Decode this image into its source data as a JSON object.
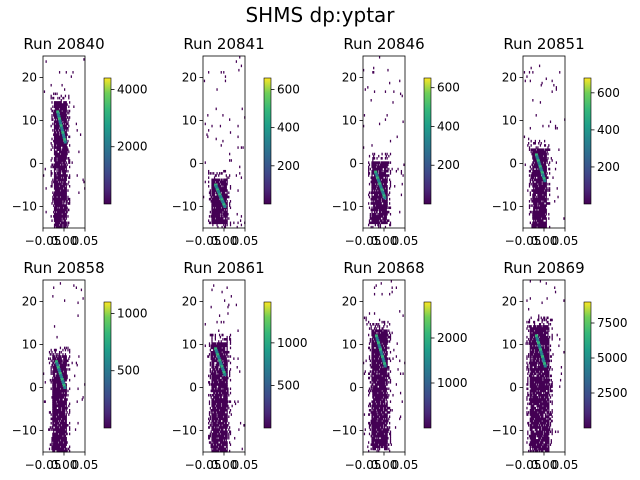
{
  "figure": {
    "suptitle": "SHMS dp:yptar"
  },
  "chart_data": [
    {
      "type": "heatmap",
      "title": "Run 20840",
      "xlim": [
        -0.05,
        0.05
      ],
      "ylim": [
        -15,
        25
      ],
      "xticks": [
        "−0.05",
        "0.00",
        "0.05"
      ],
      "yticks": [
        "−10",
        "0",
        "10",
        "20"
      ],
      "colorbar": {
        "min": 0,
        "max": 4400,
        "ticks": [
          2000,
          4000
        ]
      },
      "distribution": {
        "x_lo": -0.025,
        "x_hi": 0.005,
        "y_lo": -15,
        "y_top": 14,
        "band_x": [
          -0.015,
          0.003
        ],
        "band_y": [
          12,
          5
        ]
      }
    },
    {
      "type": "heatmap",
      "title": "Run 20841",
      "xlim": [
        -0.05,
        0.05
      ],
      "ylim": [
        -15,
        25
      ],
      "xticks": [
        "−0.05",
        "0.00",
        "0.05"
      ],
      "yticks": [
        "−10",
        "0",
        "10",
        "20"
      ],
      "colorbar": {
        "min": 0,
        "max": 660,
        "ticks": [
          200,
          400,
          600
        ]
      },
      "distribution": {
        "x_lo": -0.03,
        "x_hi": 0.008,
        "y_lo": -14,
        "y_top": -4,
        "band_x": [
          -0.02,
          0.002
        ],
        "band_y": [
          -5,
          -10
        ]
      }
    },
    {
      "type": "heatmap",
      "title": "Run 20846",
      "xlim": [
        -0.05,
        0.05
      ],
      "ylim": [
        -15,
        25
      ],
      "xticks": [
        "−0.05",
        "0.00",
        "0.05"
      ],
      "yticks": [
        "−10",
        "0",
        "10",
        "20"
      ],
      "colorbar": {
        "min": 0,
        "max": 650,
        "ticks": [
          200,
          400,
          600
        ]
      },
      "distribution": {
        "x_lo": -0.03,
        "x_hi": 0.008,
        "y_lo": -14,
        "y_top": 0,
        "band_x": [
          -0.02,
          0.002
        ],
        "band_y": [
          -2,
          -8
        ]
      }
    },
    {
      "type": "heatmap",
      "title": "Run 20851",
      "xlim": [
        -0.05,
        0.05
      ],
      "ylim": [
        -15,
        25
      ],
      "xticks": [
        "−0.05",
        "0.00",
        "0.05"
      ],
      "yticks": [
        "−10",
        "0",
        "10",
        "20"
      ],
      "colorbar": {
        "min": 0,
        "max": 680,
        "ticks": [
          200,
          400,
          600
        ]
      },
      "distribution": {
        "x_lo": -0.028,
        "x_hi": 0.006,
        "y_lo": -15,
        "y_top": 3,
        "band_x": [
          -0.018,
          0.002
        ],
        "band_y": [
          2,
          -4
        ]
      }
    },
    {
      "type": "heatmap",
      "title": "Run 20858",
      "xlim": [
        -0.05,
        0.05
      ],
      "ylim": [
        -15,
        25
      ],
      "xticks": [
        "−0.05",
        "0.00",
        "0.05"
      ],
      "yticks": [
        "−10",
        "0",
        "10",
        "20"
      ],
      "colorbar": {
        "min": 0,
        "max": 1100,
        "ticks": [
          500,
          1000
        ]
      },
      "distribution": {
        "x_lo": -0.028,
        "x_hi": 0.006,
        "y_lo": -15,
        "y_top": 7,
        "band_x": [
          -0.018,
          0.002
        ],
        "band_y": [
          6,
          0
        ]
      }
    },
    {
      "type": "heatmap",
      "title": "Run 20861",
      "xlim": [
        -0.05,
        0.05
      ],
      "ylim": [
        -15,
        25
      ],
      "xticks": [
        "−0.05",
        "0.00",
        "0.05"
      ],
      "yticks": [
        "−10",
        "0",
        "10",
        "20"
      ],
      "colorbar": {
        "min": 0,
        "max": 1480,
        "ticks": [
          500,
          1000
        ]
      },
      "distribution": {
        "x_lo": -0.03,
        "x_hi": 0.008,
        "y_lo": -15,
        "y_top": 10,
        "band_x": [
          -0.02,
          0.002
        ],
        "band_y": [
          9,
          3
        ]
      }
    },
    {
      "type": "heatmap",
      "title": "Run 20868",
      "xlim": [
        -0.05,
        0.05
      ],
      "ylim": [
        -15,
        25
      ],
      "xticks": [
        "−0.05",
        "0.00",
        "0.05"
      ],
      "yticks": [
        "−10",
        "0",
        "10",
        "20"
      ],
      "colorbar": {
        "min": 0,
        "max": 2800,
        "ticks": [
          1000,
          2000
        ]
      },
      "distribution": {
        "x_lo": -0.03,
        "x_hi": 0.008,
        "y_lo": -14,
        "y_top": 13,
        "band_x": [
          -0.018,
          0.003
        ],
        "band_y": [
          12,
          5
        ]
      }
    },
    {
      "type": "heatmap",
      "title": "Run 20869",
      "xlim": [
        -0.05,
        0.05
      ],
      "ylim": [
        -15,
        25
      ],
      "xticks": [
        "−0.05",
        "0.00",
        "0.05"
      ],
      "yticks": [
        "−10",
        "0",
        "10",
        "20"
      ],
      "colorbar": {
        "min": 0,
        "max": 9000,
        "ticks": [
          2500,
          5000,
          7500
        ]
      },
      "distribution": {
        "x_lo": -0.035,
        "x_hi": 0.012,
        "y_lo": -15,
        "y_top": 14,
        "band_x": [
          -0.018,
          0.003
        ],
        "band_y": [
          12,
          5
        ]
      }
    }
  ]
}
